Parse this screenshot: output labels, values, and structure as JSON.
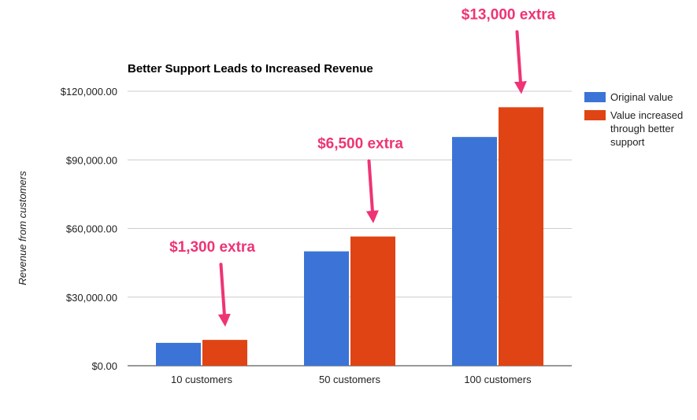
{
  "chart_data": {
    "type": "bar",
    "title": "Better Support Leads to Increased Revenue",
    "xlabel": "",
    "ylabel": "Revenue from customers",
    "categories": [
      "10 customers",
      "50 customers",
      "100 customers"
    ],
    "series": [
      {
        "name": "Original value",
        "values": [
          10000,
          50000,
          100000
        ],
        "color": "#3b74d6"
      },
      {
        "name_lines": [
          "Value increased",
          "through better",
          "support"
        ],
        "values": [
          11300,
          56500,
          113000
        ],
        "color": "#e04414"
      }
    ],
    "ylim": [
      0,
      120000
    ],
    "yticks": [
      0,
      30000,
      60000,
      90000,
      120000
    ],
    "ytick_labels": [
      "$0.00",
      "$30,000.00",
      "$60,000.00",
      "$90,000.00",
      "$120,000.00"
    ],
    "grid": true,
    "legend_position": "right",
    "annotations": [
      {
        "text": "$1,300 extra",
        "category_index": 0,
        "color": "#ee3475"
      },
      {
        "text": "$6,500 extra",
        "category_index": 1,
        "color": "#ee3475"
      },
      {
        "text": "$13,000 extra",
        "category_index": 2,
        "color": "#ee3475"
      }
    ]
  }
}
